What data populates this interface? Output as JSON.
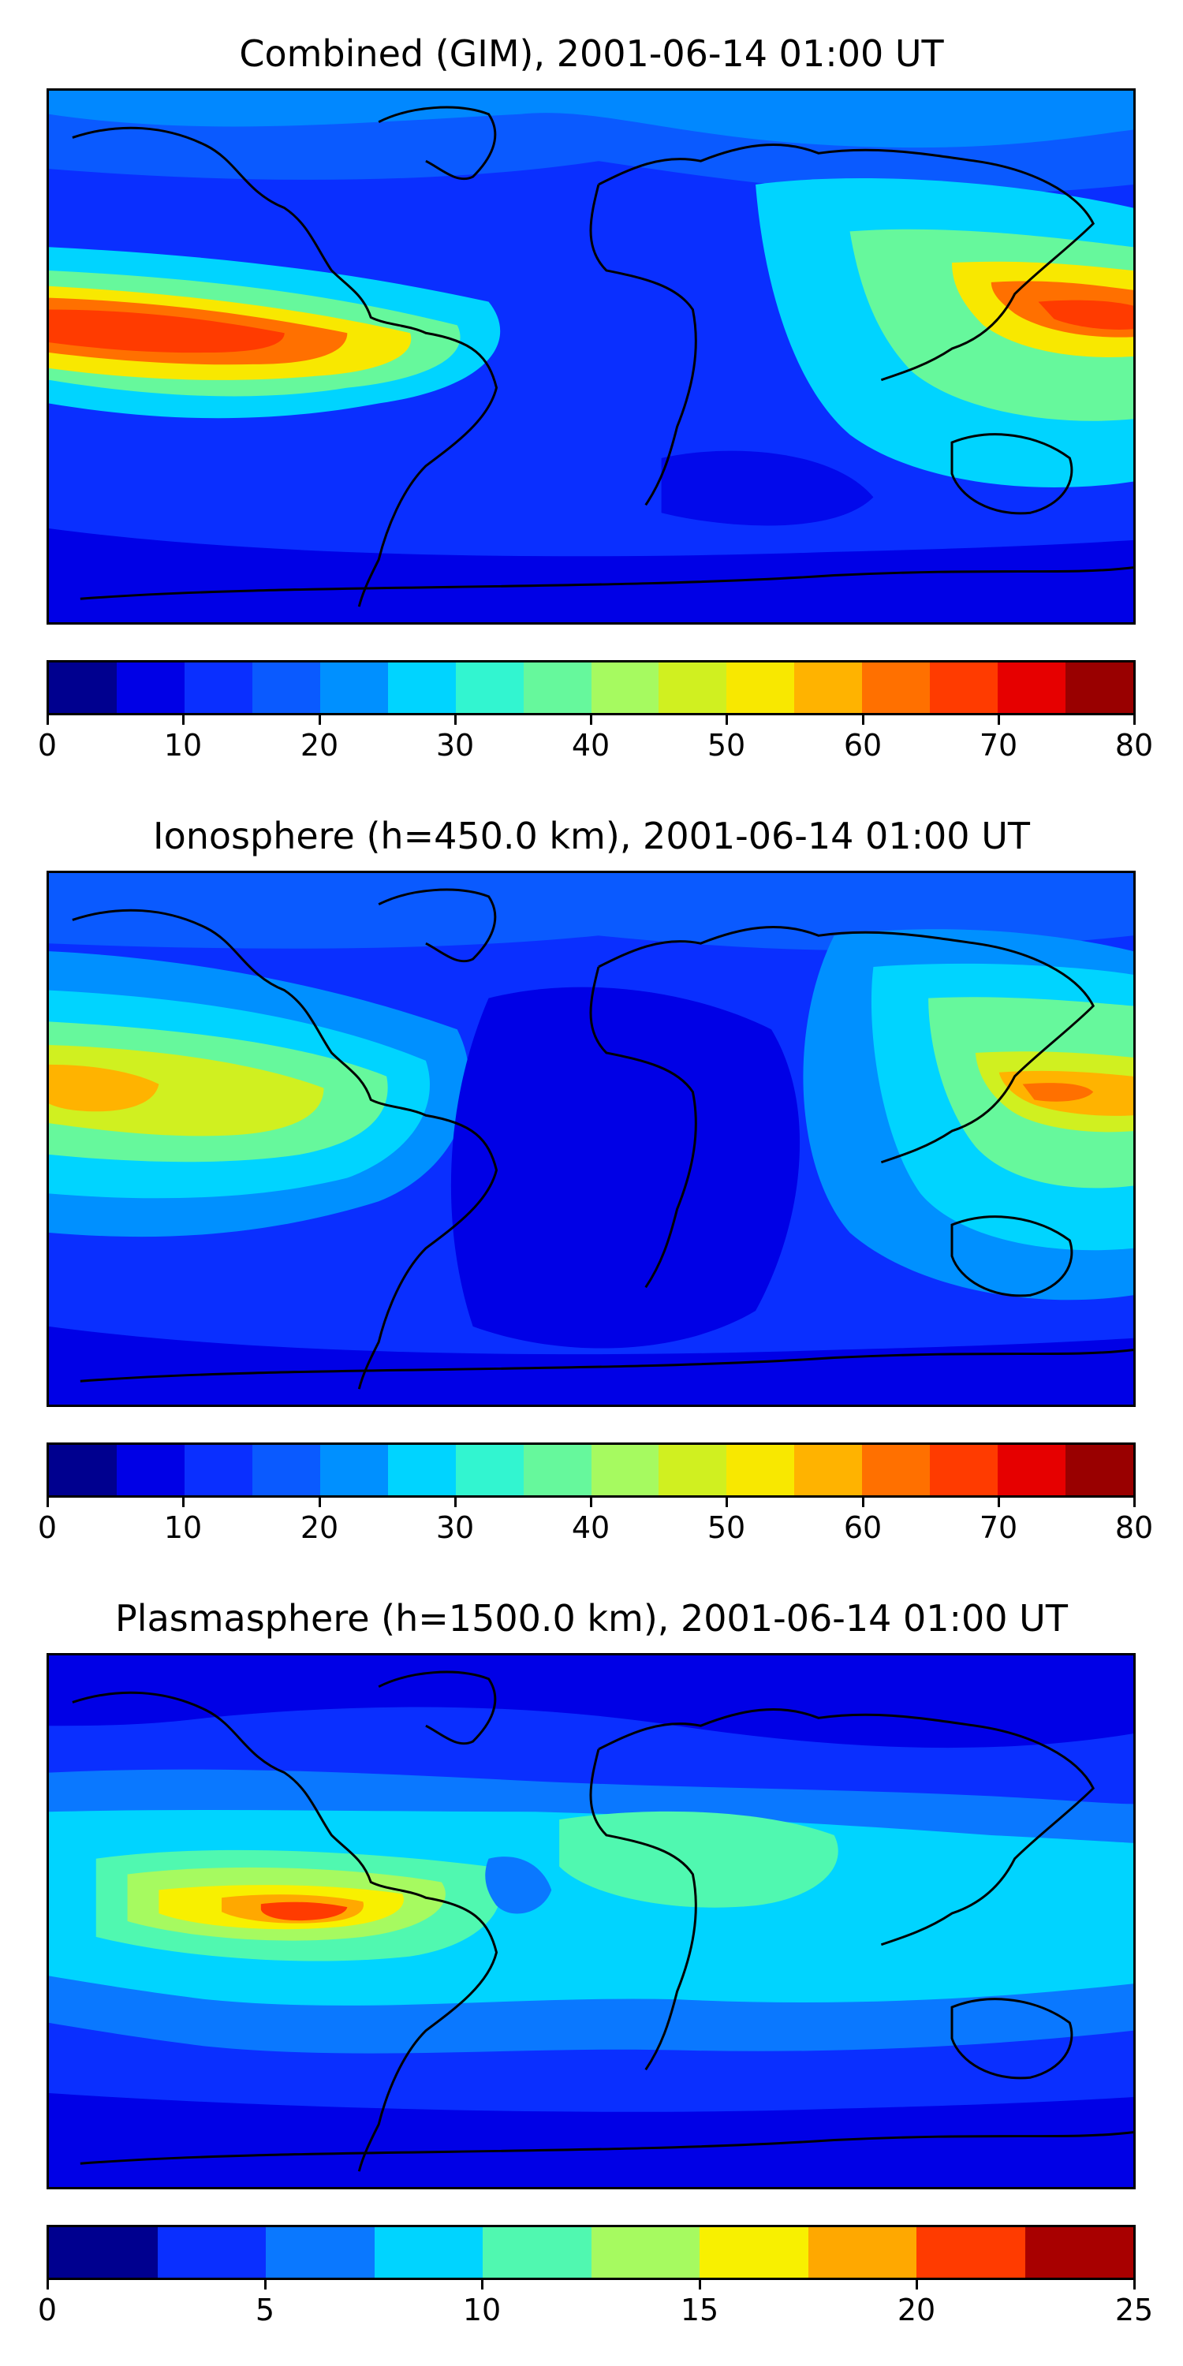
{
  "panels": [
    {
      "title": "Combined (GIM), 2001-06-14 01:00 UT",
      "colorbar": {
        "ticks": [
          "0",
          "10",
          "20",
          "30",
          "40",
          "50",
          "60",
          "70",
          "80"
        ],
        "range": [
          0,
          80
        ],
        "levels": 16,
        "colors": [
          "#00008f",
          "#0000e6",
          "#0a2fff",
          "#0a5aff",
          "#0090ff",
          "#00d4ff",
          "#32f5d0",
          "#66f89c",
          "#a6fa60",
          "#d0f020",
          "#f8e800",
          "#ffb300",
          "#ff7000",
          "#ff3b00",
          "#e60000",
          "#990000"
        ]
      },
      "background": "#0a2fff",
      "highlights": [
        "#ff4a00",
        "#ffa800",
        "#00c4ff",
        "#66f89c"
      ]
    },
    {
      "title": "Ionosphere  (h=450.0 km), 2001-06-14 01:00 UT",
      "colorbar": {
        "ticks": [
          "0",
          "10",
          "20",
          "30",
          "40",
          "50",
          "60",
          "70",
          "80"
        ],
        "range": [
          0,
          80
        ],
        "levels": 16,
        "colors": [
          "#00008f",
          "#0000e6",
          "#0a2fff",
          "#0a5aff",
          "#0090ff",
          "#00d4ff",
          "#32f5d0",
          "#66f89c",
          "#a6fa60",
          "#d0f020",
          "#f8e800",
          "#ffb300",
          "#ff7000",
          "#ff3b00",
          "#e60000",
          "#990000"
        ]
      },
      "background": "#0a2fff",
      "highlights": [
        "#ffb300",
        "#d0f020",
        "#00c4ff",
        "#66f89c"
      ]
    },
    {
      "title": "Plasmasphere (h=1500.0 km), 2001-06-14 01:00 UT",
      "colorbar": {
        "ticks": [
          "0",
          "5",
          "10",
          "15",
          "20",
          "25"
        ],
        "range": [
          0,
          25
        ],
        "levels": 10,
        "colors": [
          "#00008f",
          "#0a2fff",
          "#0a78ff",
          "#00d4ff",
          "#50f8b0",
          "#a6fa60",
          "#f8f000",
          "#ffa800",
          "#ff3b00",
          "#a80000"
        ]
      },
      "background": "#0a2fff",
      "highlights": [
        "#ff4a00",
        "#f8f000",
        "#00d4ff",
        "#66f89c"
      ]
    }
  ]
}
